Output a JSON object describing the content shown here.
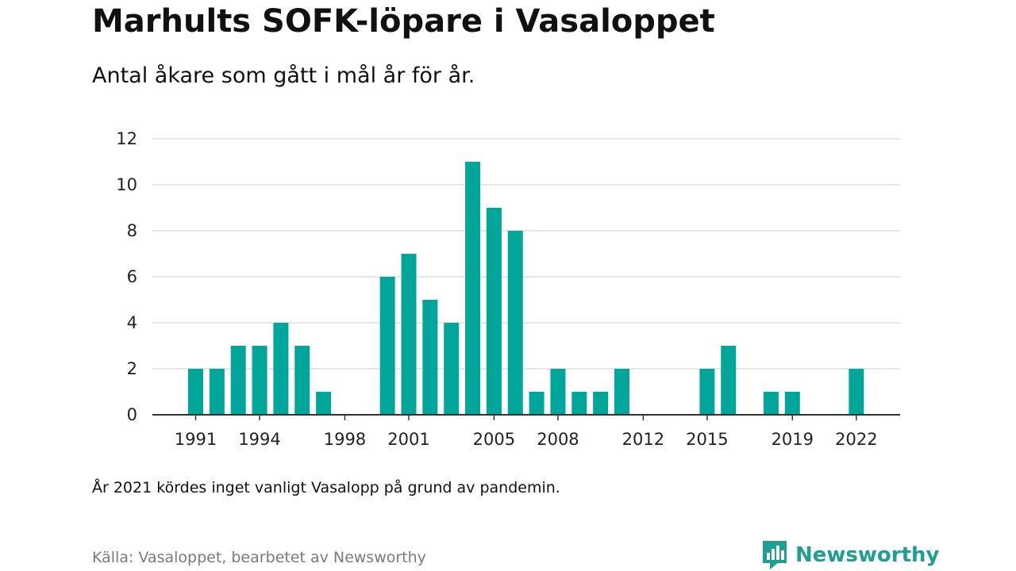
{
  "header": {
    "title": "Marhults SOFK-löpare i Vasaloppet",
    "subtitle": "Antal åkare som gått i mål år för år."
  },
  "footer": {
    "note": "År 2021 kördes inget vanligt Vasalopp på grund av pandemin.",
    "source": "Källa: Vasaloppet, bearbetet av Newsworthy",
    "brand": "Newsworthy",
    "brand_icon": "newsworthy-logo-icon"
  },
  "colors": {
    "bar": "#00a699",
    "grid": "#dddddd",
    "axis": "#333333",
    "brand": "#1f9e92"
  },
  "chart_data": {
    "type": "bar",
    "title": "",
    "xlabel": "",
    "ylabel": "",
    "x": [
      1991,
      1992,
      1993,
      1994,
      1995,
      1996,
      1997,
      1998,
      1999,
      2000,
      2001,
      2002,
      2003,
      2004,
      2005,
      2006,
      2007,
      2008,
      2009,
      2010,
      2011,
      2012,
      2013,
      2014,
      2015,
      2016,
      2017,
      2018,
      2019,
      2020,
      2021,
      2022
    ],
    "values": [
      2,
      2,
      3,
      3,
      4,
      3,
      1,
      0,
      0,
      6,
      7,
      5,
      4,
      11,
      9,
      8,
      1,
      2,
      1,
      1,
      2,
      0,
      0,
      0,
      2,
      3,
      0,
      1,
      1,
      0,
      0,
      2
    ],
    "x_tick_labels": [
      1991,
      1994,
      1998,
      2001,
      2005,
      2008,
      2012,
      2015,
      2019,
      2022
    ],
    "y_ticks": [
      0,
      2,
      4,
      6,
      8,
      10,
      12
    ],
    "ylim": [
      0,
      12
    ],
    "grid": true,
    "legend": "none"
  }
}
